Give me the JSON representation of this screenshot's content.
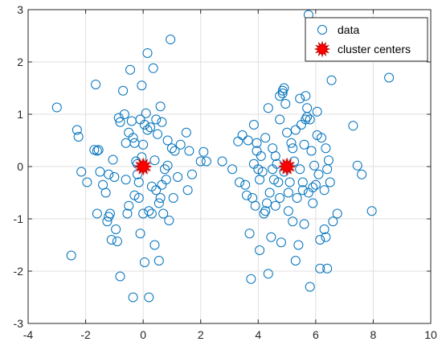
{
  "chart_data": {
    "type": "scatter",
    "title": "",
    "xlabel": "",
    "ylabel": "",
    "xlim": [
      -4,
      10
    ],
    "ylim": [
      -3,
      3
    ],
    "xticks": [
      -4,
      -2,
      0,
      2,
      4,
      6,
      8,
      10
    ],
    "yticks": [
      -3,
      -2,
      -1,
      0,
      1,
      2,
      3
    ],
    "grid": true,
    "legend": "top-right",
    "colors": {
      "data": "#0072BD",
      "centers": "#FF0000",
      "grid": "#DFDFDF",
      "axes": "#262626"
    },
    "series": [
      {
        "name": "data",
        "marker": "open-circle",
        "points": [
          [
            -3.0,
            1.13
          ],
          [
            -2.3,
            0.7
          ],
          [
            -2.25,
            0.57
          ],
          [
            -2.15,
            -0.1
          ],
          [
            -1.95,
            -0.3
          ],
          [
            -2.5,
            -1.7
          ],
          [
            -1.7,
            0.32
          ],
          [
            -1.65,
            1.57
          ],
          [
            -1.6,
            0.3
          ],
          [
            -1.55,
            0.32
          ],
          [
            -1.5,
            -0.1
          ],
          [
            -1.4,
            -0.35
          ],
          [
            -1.3,
            -0.5
          ],
          [
            -1.25,
            -1.05
          ],
          [
            -1.2,
            -0.96
          ],
          [
            -1.15,
            -0.9
          ],
          [
            -1.1,
            -1.4
          ],
          [
            -1.05,
            0.13
          ],
          [
            -1.2,
            -0.15
          ],
          [
            -1.0,
            -0.2
          ],
          [
            -0.95,
            -1.2
          ],
          [
            -0.9,
            -1.43
          ],
          [
            -0.85,
            0.93
          ],
          [
            -0.8,
            0.85
          ],
          [
            -0.8,
            -2.1
          ],
          [
            -0.7,
            1.45
          ],
          [
            -0.65,
            1.0
          ],
          [
            -0.6,
            0.45
          ],
          [
            -0.55,
            -0.9
          ],
          [
            -0.5,
            0.65
          ],
          [
            -0.45,
            1.85
          ],
          [
            -0.35,
            0.55
          ],
          [
            -0.4,
            0.87
          ],
          [
            -0.3,
            -0.55
          ],
          [
            -0.25,
            0.1
          ],
          [
            -0.2,
            0.05
          ],
          [
            -0.2,
            -0.15
          ],
          [
            -0.15,
            -0.6
          ],
          [
            -0.1,
            -1.28
          ],
          [
            -0.05,
            0.18
          ],
          [
            0.0,
            0.42
          ],
          [
            0.05,
            0.8
          ],
          [
            0.1,
            1.02
          ],
          [
            0.15,
            2.17
          ],
          [
            0.2,
            -0.85
          ],
          [
            0.25,
            0.75
          ],
          [
            0.3,
            -0.38
          ],
          [
            0.35,
            1.88
          ],
          [
            0.4,
            0.12
          ],
          [
            0.45,
            0.9
          ],
          [
            0.5,
            0.62
          ],
          [
            0.55,
            -0.7
          ],
          [
            0.6,
            1.15
          ],
          [
            0.65,
            -0.35
          ],
          [
            0.7,
            -0.9
          ],
          [
            0.75,
            -0.05
          ],
          [
            0.8,
            -0.25
          ],
          [
            0.85,
            0.5
          ],
          [
            0.9,
            -1.03
          ],
          [
            0.95,
            2.43
          ],
          [
            1.0,
            0.35
          ],
          [
            1.05,
            -0.6
          ],
          [
            1.1,
            0.3
          ],
          [
            1.2,
            -0.2
          ],
          [
            1.3,
            0.42
          ],
          [
            1.5,
            0.65
          ],
          [
            1.55,
            -0.45
          ],
          [
            1.6,
            0.3
          ],
          [
            1.7,
            -0.15
          ],
          [
            2.0,
            0.1
          ],
          [
            2.1,
            0.28
          ],
          [
            2.2,
            0.1
          ],
          [
            2.75,
            0.1
          ],
          [
            -0.35,
            -2.5
          ],
          [
            0.05,
            -1.83
          ],
          [
            0.2,
            -2.5
          ],
          [
            -0.3,
            0.45
          ],
          [
            0.45,
            -0.45
          ],
          [
            -0.15,
            -0.3
          ],
          [
            0.6,
            -0.6
          ],
          [
            0.85,
            0.02
          ],
          [
            -0.6,
            -0.25
          ],
          [
            -0.5,
            -0.75
          ],
          [
            0.15,
            0.7
          ],
          [
            0.3,
            -0.9
          ],
          [
            -0.05,
            1.55
          ],
          [
            0.55,
            -1.8
          ],
          [
            0.4,
            -1.5
          ],
          [
            -1.6,
            -0.9
          ],
          [
            0.0,
            -0.9
          ],
          [
            0.65,
            0.85
          ],
          [
            -0.1,
            0.9
          ],
          [
            3.3,
            0.48
          ],
          [
            3.45,
            0.6
          ],
          [
            3.55,
            -0.35
          ],
          [
            3.6,
            -0.55
          ],
          [
            3.65,
            0.5
          ],
          [
            3.7,
            -1.28
          ],
          [
            3.75,
            -2.15
          ],
          [
            3.8,
            -0.6
          ],
          [
            3.85,
            0.8
          ],
          [
            3.9,
            -0.75
          ],
          [
            3.95,
            0.3
          ],
          [
            4.0,
            -0.05
          ],
          [
            4.05,
            -1.6
          ],
          [
            4.1,
            0.2
          ],
          [
            4.15,
            -0.1
          ],
          [
            4.2,
            -0.9
          ],
          [
            4.25,
            0.55
          ],
          [
            4.3,
            -0.7
          ],
          [
            4.35,
            1.12
          ],
          [
            4.4,
            -0.5
          ],
          [
            4.45,
            -1.35
          ],
          [
            4.5,
            0.35
          ],
          [
            4.55,
            -0.25
          ],
          [
            4.6,
            0.2
          ],
          [
            4.65,
            0.05
          ],
          [
            4.7,
            -0.3
          ],
          [
            4.75,
            0.9
          ],
          [
            4.8,
            -1.45
          ],
          [
            4.85,
            1.45
          ],
          [
            4.9,
            1.5
          ],
          [
            4.95,
            1.2
          ],
          [
            5.0,
            0.65
          ],
          [
            5.05,
            -0.85
          ],
          [
            5.1,
            -0.3
          ],
          [
            5.15,
            0.45
          ],
          [
            5.2,
            -1.05
          ],
          [
            5.25,
            0.1
          ],
          [
            5.3,
            0.7
          ],
          [
            5.35,
            -0.6
          ],
          [
            5.4,
            -1.5
          ],
          [
            5.45,
            1.3
          ],
          [
            5.5,
            0.8
          ],
          [
            5.55,
            -0.45
          ],
          [
            5.6,
            -1.1
          ],
          [
            5.65,
            0.9
          ],
          [
            5.7,
            1.12
          ],
          [
            5.75,
            -0.5
          ],
          [
            5.8,
            -2.3
          ],
          [
            5.85,
            0.3
          ],
          [
            5.9,
            -0.7
          ],
          [
            5.95,
            0.02
          ],
          [
            6.0,
            -0.35
          ],
          [
            6.05,
            1.05
          ],
          [
            6.1,
            -0.15
          ],
          [
            6.15,
            -1.4
          ],
          [
            6.2,
            0.55
          ],
          [
            6.3,
            -1.2
          ],
          [
            6.35,
            0.35
          ],
          [
            6.4,
            -0.05
          ],
          [
            6.45,
            0.12
          ],
          [
            6.5,
            -0.3
          ],
          [
            6.55,
            1.65
          ],
          [
            6.6,
            -1.05
          ],
          [
            6.75,
            -0.9
          ],
          [
            7.3,
            0.78
          ],
          [
            7.45,
            0.02
          ],
          [
            7.6,
            -0.15
          ],
          [
            7.95,
            -0.85
          ],
          [
            8.55,
            1.7
          ],
          [
            5.75,
            2.9
          ],
          [
            4.35,
            -2.05
          ],
          [
            5.3,
            -1.8
          ],
          [
            6.15,
            -1.95
          ],
          [
            6.4,
            -1.95
          ],
          [
            4.9,
            -0.1
          ],
          [
            4.75,
            -0.6
          ],
          [
            5.2,
            0.35
          ],
          [
            3.85,
            0.05
          ],
          [
            4.25,
            -0.85
          ],
          [
            5.45,
            -0.05
          ],
          [
            4.6,
            -0.75
          ],
          [
            5.6,
            0.42
          ],
          [
            6.3,
            -0.45
          ],
          [
            3.95,
            0.45
          ],
          [
            5.05,
            -0.5
          ],
          [
            5.8,
            0.9
          ],
          [
            4.5,
            -0.05
          ],
          [
            5.55,
            -0.3
          ],
          [
            3.1,
            -0.05
          ],
          [
            3.35,
            -0.3
          ],
          [
            4.05,
            -0.25
          ],
          [
            5.7,
            0.95
          ],
          [
            6.05,
            0.6
          ],
          [
            4.75,
            1.35
          ],
          [
            5.65,
            1.35
          ],
          [
            6.35,
            -1.35
          ],
          [
            4.85,
            1.4
          ],
          [
            5.9,
            -0.4
          ]
        ]
      },
      {
        "name": "cluster centers",
        "marker": "star-filled",
        "points": [
          [
            0.0,
            0.0
          ],
          [
            5.0,
            0.0
          ]
        ]
      }
    ]
  }
}
